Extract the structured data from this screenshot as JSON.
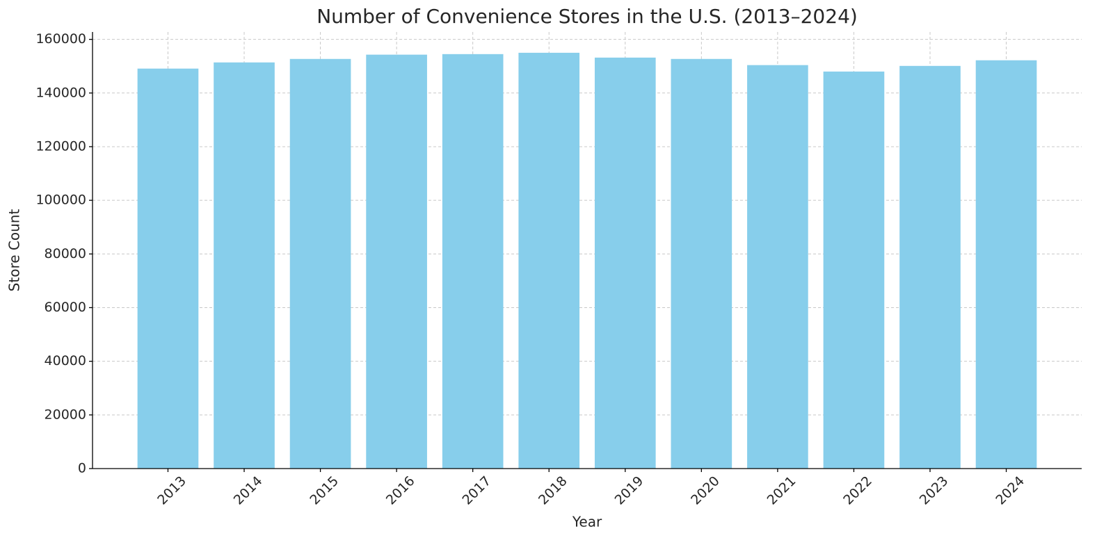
{
  "chart_data": {
    "type": "bar",
    "title": "Number of Convenience Stores in the U.S. (2013–2024)",
    "x_label": "Year",
    "y_label": "Store Count",
    "categories": [
      "2013",
      "2014",
      "2015",
      "2016",
      "2017",
      "2018",
      "2019",
      "2020",
      "2021",
      "2022",
      "2023",
      "2024"
    ],
    "values": [
      149100,
      151400,
      152700,
      154300,
      154500,
      155000,
      153200,
      152700,
      150400,
      148000,
      150100,
      152200
    ],
    "color": "#87ceeb",
    "ylim": [
      0,
      162750
    ],
    "yticks": [
      0,
      20000,
      40000,
      60000,
      80000,
      100000,
      120000,
      140000,
      160000
    ],
    "grid": true
  }
}
